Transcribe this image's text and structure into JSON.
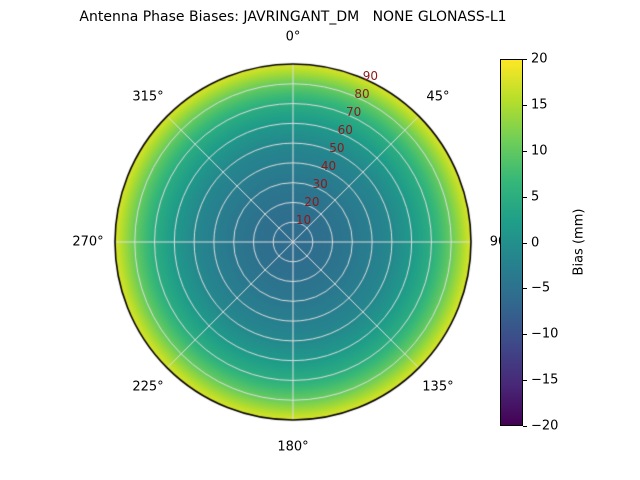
{
  "title": "Antenna Phase Biases: JAVRINGANT_DM   NONE GLONASS-L1",
  "chart_data": {
    "type": "heatmap",
    "projection": "polar",
    "title": "Antenna Phase Biases: JAVRINGANT_DM   NONE GLONASS-L1",
    "theta_labels": [
      {
        "angle_deg": 0,
        "label": "0°"
      },
      {
        "angle_deg": 45,
        "label": "45°"
      },
      {
        "angle_deg": 90,
        "label": "90"
      },
      {
        "angle_deg": 135,
        "label": "135°"
      },
      {
        "angle_deg": 180,
        "label": "180°"
      },
      {
        "angle_deg": 225,
        "label": "225°"
      },
      {
        "angle_deg": 270,
        "label": "270°"
      },
      {
        "angle_deg": 315,
        "label": "315°"
      }
    ],
    "r_ticks": [
      "10",
      "20",
      "30",
      "40",
      "50",
      "60",
      "70",
      "80",
      "90"
    ],
    "r_tick_values": [
      10,
      20,
      30,
      40,
      50,
      60,
      70,
      80,
      90
    ],
    "r_max": 90,
    "r_label_angle_deg": 25,
    "radial_profile": {
      "zenith_deg": [
        0,
        10,
        20,
        30,
        40,
        50,
        60,
        70,
        80,
        90
      ],
      "bias_mm": [
        -6,
        -5.7,
        -5.0,
        -4.0,
        -2.8,
        -1.2,
        1.5,
        5,
        10.5,
        18
      ]
    },
    "colorbar": {
      "label": "Bias (mm)",
      "min": -20,
      "max": 20,
      "tick_values": [
        20,
        15,
        10,
        5,
        0,
        -5,
        -10,
        -15,
        -20
      ],
      "tick_labels": [
        "20",
        "15",
        "10",
        "5",
        "0",
        "−5",
        "−10",
        "−15",
        "−20"
      ],
      "colormap": "viridis"
    },
    "grid": "on",
    "legend_position": "none"
  },
  "colors": {
    "viridis_stops": [
      "#440154",
      "#482878",
      "#3e4989",
      "#31688e",
      "#26828e",
      "#1f9e89",
      "#35b779",
      "#6ece58",
      "#b5de2b",
      "#fde725"
    ],
    "grid_line": "#dedede",
    "outer_ring": "#000000",
    "radial_tick_label": "#8b1a1a",
    "theta_tick_label": "#000000",
    "background": "#ffffff"
  }
}
